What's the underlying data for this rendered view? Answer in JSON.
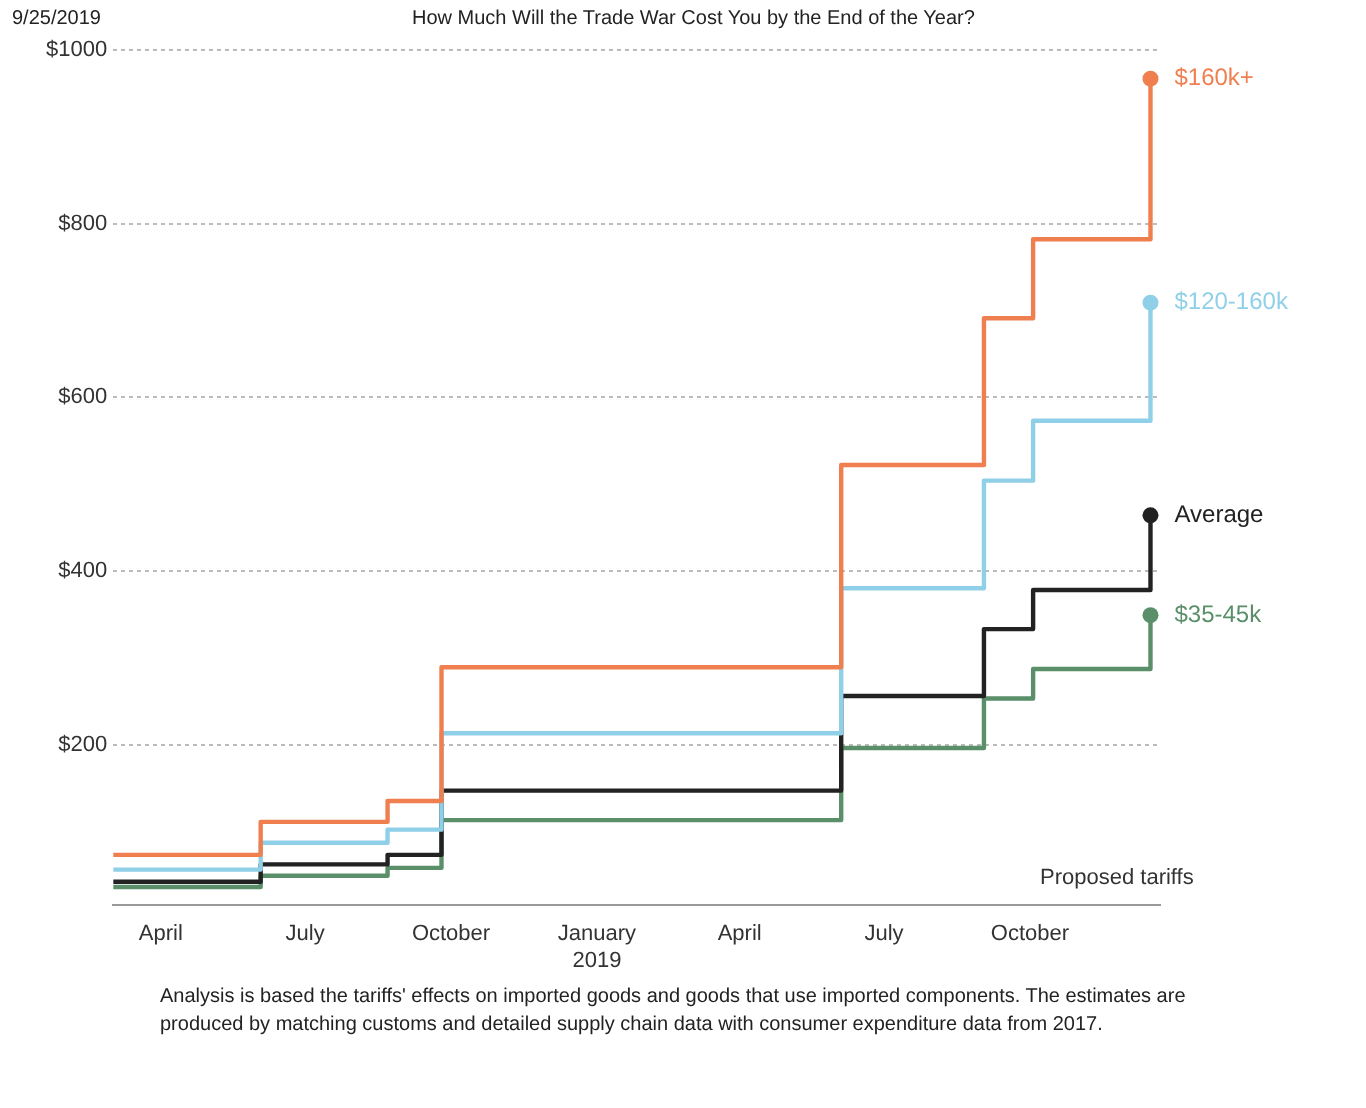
{
  "chart_data": {
    "type": "step",
    "title": "How Much Will the Trade War Cost You by the End of the Year?",
    "annotations": [
      "9/25/2019",
      "Proposed tariffs",
      "Analysis is based the tariffs' effects on imported goods and goods that use imported components. The estimates are produced by matching customs and detailed supply chain data with consumer expenditure data from 2017."
    ],
    "x": [
      "2018-03-02",
      "2018-06-03",
      "2018-08-22",
      "2018-09-25",
      "2019-06-04",
      "2019-09-02",
      "2019-10-03",
      "2019-12-16"
    ],
    "series": [
      {
        "name": "$160k+",
        "color": "#f07f4f",
        "values": [
          73,
          111,
          135,
          289,
          522,
          691,
          782,
          967
        ]
      },
      {
        "name": "$120-160k",
        "color": "#8fd0e8",
        "values": [
          56,
          87,
          102,
          213,
          380,
          504,
          573,
          709
        ]
      },
      {
        "name": "Average",
        "color": "#222222",
        "values": [
          42,
          62,
          73,
          147,
          256,
          333,
          378,
          464
        ]
      },
      {
        "name": "$35-45k",
        "color": "#5a8f6a",
        "values": [
          36,
          49,
          58,
          113,
          196,
          253,
          287,
          349
        ]
      }
    ],
    "xlim": [
      "2018-03-02",
      "2019-12-22"
    ],
    "xticks": [
      {
        "value": "2018-04-01",
        "label": "April"
      },
      {
        "value": "2018-07-01",
        "label": "July"
      },
      {
        "value": "2018-10-01",
        "label": "October"
      },
      {
        "value": "2019-01-01",
        "label": "January\n2019"
      },
      {
        "value": "2019-04-01",
        "label": "April"
      },
      {
        "value": "2019-07-01",
        "label": "July"
      },
      {
        "value": "2019-10-01",
        "label": "October"
      }
    ],
    "ylim": [
      15,
      1000
    ],
    "yticks": [
      {
        "value": 200,
        "label": "$200"
      },
      {
        "value": 400,
        "label": "$400"
      },
      {
        "value": 600,
        "label": "$600"
      },
      {
        "value": 800,
        "label": "$800"
      },
      {
        "value": 1000,
        "label": "$1000"
      }
    ],
    "grid": "y",
    "legend": false
  }
}
